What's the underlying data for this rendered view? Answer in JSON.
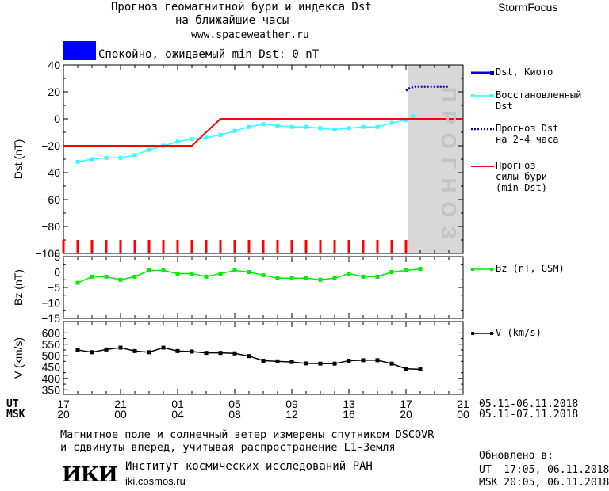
{
  "header": {
    "title_line1": "Прогноз геомагнитной бури и индекса Dst",
    "title_line2": "на ближайшие часы",
    "url": "www.spaceweather.ru",
    "brand": "StormFocus"
  },
  "status": {
    "text": "Спокойно, ожидаемый min Dst: 0 nT",
    "color": "#0000ff"
  },
  "forecast_zone_label": "ПРОГНОЗ",
  "colors": {
    "dst_kyoto": "#0000cc",
    "dst_restored": "#33ffff",
    "dst_forecast": "#0000cc",
    "storm_forecast": "#ff0000",
    "bz": "#00ee00",
    "v": "#000000",
    "forecast_zone": "#d8d8d8",
    "ticks": "#ff0000"
  },
  "legend": {
    "dst_kyoto": "Dst, Киото",
    "dst_restored": "Восстановленный\nDst",
    "dst_forecast": "Прогноз Dst\nна 2-4 часа",
    "storm_forecast": "Прогноз\nсилы бури\n(min Dst)",
    "bz": "Bz (nT, GSM)",
    "v": "V (km/s)"
  },
  "xaxis": {
    "ut_label": "UT",
    "msk_label": "MSK",
    "ut_ticks": [
      "17",
      "21",
      "01",
      "05",
      "09",
      "13",
      "17",
      "21"
    ],
    "msk_ticks": [
      "20",
      "00",
      "04",
      "08",
      "12",
      "16",
      "20",
      "00"
    ],
    "ut_range": "05.11-06.11.2018",
    "msk_range": "05.11-07.11.2018"
  },
  "footer": {
    "note_line1": "Магнитное поле и солнечный ветер измерены спутником DSCOVR",
    "note_line2": "и сдвинуты вперед, учитывая распространение L1-Земля",
    "logo": "ИКИ",
    "institute": "Институт космических исследований РАН",
    "site": "iki.cosmos.ru",
    "updated_label": "Обновлено в:",
    "updated_ut": "UT  17:05, 06.11.2018",
    "updated_msk": "MSK 20:05, 06.11.2018"
  },
  "chart_data": [
    {
      "type": "line",
      "ylabel": "Dst (nT)",
      "ylim": [
        -100,
        40
      ],
      "yticks": [
        40,
        20,
        0,
        -20,
        -40,
        -60,
        -80,
        -100
      ],
      "x_hours_range": [
        17,
        45
      ],
      "forecast_zone_hours": [
        41,
        45
      ],
      "series": [
        {
          "name": "Восстановленный Dst",
          "color_key": "dst_restored",
          "x": [
            18,
            19,
            20,
            21,
            22,
            23,
            24,
            25,
            26,
            27,
            28,
            29,
            30,
            31,
            32,
            33,
            34,
            35,
            36,
            37,
            38,
            39,
            40,
            41,
            41.5
          ],
          "y": [
            -32,
            -30,
            -29,
            -29,
            -27,
            -23,
            -20,
            -17,
            -15,
            -14,
            -12,
            -9,
            -6,
            -4,
            -5,
            -6,
            -6,
            -7,
            -8,
            -7,
            -6,
            -6,
            -3,
            -1,
            2
          ]
        },
        {
          "name": "Прогноз Dst на 2-4 часа",
          "color_key": "dst_forecast",
          "style": "dotted",
          "x": [
            41,
            41.3,
            41.6,
            42,
            43,
            44
          ],
          "y": [
            21,
            23,
            24,
            24,
            24,
            24
          ]
        },
        {
          "name": "Прогноз силы бури (min Dst)",
          "color_key": "storm_forecast",
          "style": "step",
          "x": [
            17,
            26,
            28,
            45
          ],
          "y": [
            -20,
            -20,
            0,
            0
          ]
        }
      ],
      "hour_ticks": [
        17,
        18,
        19,
        20,
        21,
        22,
        23,
        24,
        25,
        26,
        27,
        28,
        29,
        30,
        31,
        32,
        33,
        34,
        35,
        36,
        37,
        38,
        39,
        40,
        41
      ]
    },
    {
      "type": "line",
      "ylabel": "Bz (nT)",
      "ylim": [
        -15,
        5
      ],
      "yticks": [
        5,
        0,
        -5,
        -10,
        -15
      ],
      "series": [
        {
          "name": "Bz (nT, GSM)",
          "color_key": "bz",
          "x": [
            18,
            19,
            20,
            21,
            22,
            23,
            24,
            25,
            26,
            27,
            28,
            29,
            30,
            31,
            32,
            33,
            34,
            35,
            36,
            37,
            38,
            39,
            40,
            41,
            42
          ],
          "y": [
            -3.5,
            -1.5,
            -1.5,
            -2.5,
            -1.5,
            0.5,
            0.5,
            -0.5,
            -0.5,
            -1.5,
            -0.5,
            0.5,
            0,
            -1,
            -2,
            -2,
            -2,
            -2.5,
            -2,
            -0.5,
            -1.5,
            -1.5,
            0,
            0.5,
            1
          ]
        }
      ]
    },
    {
      "type": "line",
      "ylabel": "V (km/s)",
      "ylim": [
        330,
        650
      ],
      "yticks": [
        600,
        550,
        500,
        450,
        400,
        350
      ],
      "series": [
        {
          "name": "V (km/s)",
          "color_key": "v",
          "x": [
            18,
            19,
            20,
            21,
            22,
            23,
            24,
            25,
            26,
            27,
            28,
            29,
            30,
            31,
            32,
            33,
            34,
            35,
            36,
            37,
            38,
            39,
            40,
            41,
            42
          ],
          "y": [
            525,
            515,
            527,
            535,
            520,
            515,
            535,
            520,
            518,
            512,
            512,
            510,
            498,
            478,
            475,
            472,
            466,
            465,
            465,
            478,
            480,
            480,
            465,
            442,
            440
          ]
        }
      ]
    }
  ]
}
